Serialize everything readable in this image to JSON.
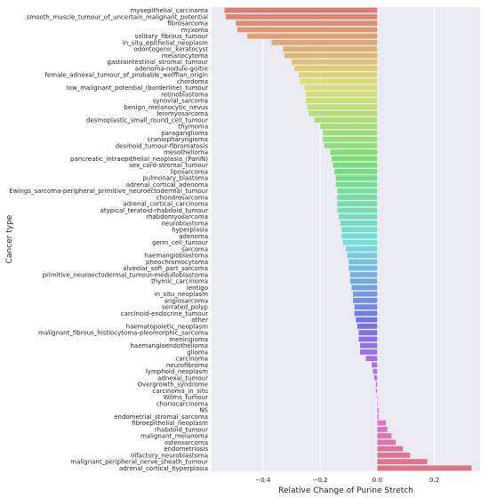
{
  "chart_data": {
    "type": "bar",
    "orientation": "horizontal",
    "xlabel": "Relative Change of Purine Stretch",
    "ylabel": "Cancer type",
    "xlim": [
      -0.58,
      0.36
    ],
    "xticks": [
      -0.4,
      -0.2,
      0.0,
      0.2
    ],
    "xtick_labels": [
      "−0.4",
      "−0.2",
      "0.0",
      "0.2"
    ],
    "grid": "vertical",
    "background": "#eaeaf2",
    "categories": [
      "myoepithelial_carcinoma",
      "smooth_muscle_tumour_of_uncertain_malignant_potential",
      "fibrosarcoma",
      "myxoma",
      "solitary_fibrous_tumour",
      "in_situ_epithelial_neoplasm",
      "odontogenic_keratocyst",
      "melanocytoma",
      "gastrointestinal_stromal_tumour",
      "adenoma-nodule-goitre",
      "female_adnexal_tumour_of_probable_wolffian_origin",
      "chordoma",
      "low_malignant_potential_(borderline)_tumour",
      "retinoblastoma",
      "synovial_sarcoma",
      "benign_melanocytic_nevus",
      "leiomyosarcoma",
      "desmoplastic_small_round_cell_tumour",
      "thymoma",
      "paraganglioma",
      "craniopharyngioma",
      "desmoid_tumour-fibromatosis",
      "mesothelioma",
      "pancreatic_intraepithelial_neoplasia_(PanIN)",
      "sex_cord-stromal_tumour",
      "liposarcoma",
      "pulmonary_blastoma",
      "adrenal_cortical_adenoma",
      "Ewings_sarcoma-peripheral_primitive_neuroectodermal_tumour",
      "chondrosarcoma",
      "adrenal_cortical_carcinoma",
      "atypical_teratoid-rhabdoid_tumour",
      "rhabdomyosarcoma",
      "neuroblastoma",
      "hyperplasia",
      "adenoma",
      "germ_cell_tumour",
      "sarcoma",
      "haemangioblastoma",
      "pheochromocytoma",
      "alveolar_soft_part_sarcoma",
      "primitive_neuroectodermal_tumour-medulloblastoma",
      "thymic_carcinoma",
      "lentigo",
      "in_situ_neoplasm",
      "angiosarcoma",
      "serrated_polyp",
      "carcinoid-endocrine_tumour",
      "other",
      "haematopoietic_neoplasm",
      "malignant_fibrous_histiocytoma-pleomorphic_sarcoma",
      "meningioma",
      "haemangioendothelioma",
      "glioma",
      "carcinoma",
      "neurofibroma",
      "lymphoid_neoplasm",
      "adnexal_tumour",
      "Overgrowth_syndrome",
      "carcinoma_in_situ",
      "Wilms_tumour",
      "choriocarcinoma",
      "NS",
      "endometrial_stromal_sarcoma",
      "fibroepithelial_neoplasm",
      "rhabdoid_tumour",
      "malignant_melanoma",
      "osteosarcoma",
      "endometriosis",
      "olfactory_neuroblastoma",
      "malignant_peripheral_nerve_sheath_tumour",
      "adrenal_cortical_hyperplasia"
    ],
    "values": [
      -0.535,
      -0.53,
      -0.495,
      -0.49,
      -0.455,
      -0.37,
      -0.33,
      -0.325,
      -0.3,
      -0.29,
      -0.275,
      -0.27,
      -0.255,
      -0.25,
      -0.25,
      -0.245,
      -0.24,
      -0.22,
      -0.2,
      -0.19,
      -0.19,
      -0.185,
      -0.165,
      -0.16,
      -0.155,
      -0.15,
      -0.145,
      -0.145,
      -0.14,
      -0.14,
      -0.14,
      -0.14,
      -0.135,
      -0.13,
      -0.125,
      -0.125,
      -0.12,
      -0.11,
      -0.105,
      -0.1,
      -0.1,
      -0.095,
      -0.095,
      -0.09,
      -0.085,
      -0.085,
      -0.08,
      -0.08,
      -0.075,
      -0.07,
      -0.065,
      -0.065,
      -0.06,
      -0.06,
      -0.04,
      -0.02,
      -0.015,
      -0.01,
      -0.005,
      -0.005,
      0.0,
      0.0,
      0.005,
      0.005,
      0.03,
      0.035,
      0.05,
      0.065,
      0.09,
      0.115,
      0.175,
      0.33
    ],
    "palette": "husl"
  }
}
